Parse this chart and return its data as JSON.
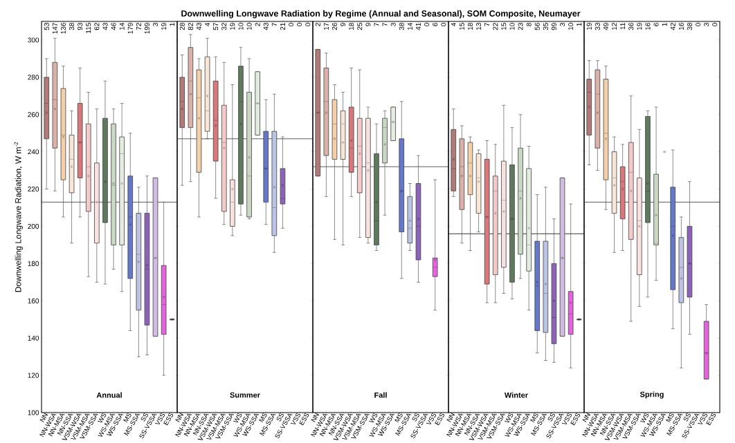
{
  "chart_data": [
    {
      "type": "other",
      "title": "Downwelling Longwave Radiation by Regime (Annual and Seasonal), SOM Composite, Neumayer"
    },
    {
      "type": "box",
      "subtitle": "Annual",
      "ylabel": "Downwelling Longwave Radiation, W m$^{-2}$",
      "categories": [
        "NN",
        "NN-WSA",
        "NN-MSA",
        "NN-SSA",
        "VSM-WSA",
        "VSM-MSA",
        "VSM-SSA",
        "WS",
        "WS-MSA",
        "WS-SSA",
        "MS",
        "MS-SSA",
        "SS",
        "SS-VSSA",
        "VSS",
        "ESS"
      ],
      "colors": [
        "#b07a78",
        "#d9b1a9",
        "#f3cfaa",
        "#f8e6d6",
        "#d9777a",
        "#f4c9c9",
        "#f8e1de",
        "#5f7a5d",
        "#c8d8c4",
        "#e3ecdf",
        "#6577c8",
        "#bcc4e6",
        "#8c63b9",
        "#d1bde2",
        "#e563dc",
        "#444444"
      ],
      "ylim": [
        100,
        310
      ],
      "yticks": [
        100,
        120,
        140,
        160,
        180,
        200,
        220,
        240,
        260,
        280,
        300
      ],
      "ref_lines": [
        {
          "axis": "y",
          "value": 213,
          "color": "#333333"
        }
      ],
      "boxes": [
        {
          "low": 220,
          "q1": 247,
          "median": 266,
          "q3": 280,
          "high": 290,
          "mean": 261
        },
        {
          "low": 219,
          "q1": 242,
          "median": 268,
          "q3": 288,
          "high": 301,
          "mean": 263
        },
        {
          "low": 205,
          "q1": 225,
          "median": 249,
          "q3": 274,
          "high": 286,
          "mean": 248
        },
        {
          "low": 191,
          "q1": 218,
          "median": 236,
          "q3": 249,
          "high": 262,
          "mean": 232
        },
        {
          "low": 205,
          "q1": 226,
          "median": 245,
          "q3": 266,
          "high": 285,
          "mean": 245
        },
        {
          "low": 173,
          "q1": 208,
          "median": 232,
          "q3": 255,
          "high": 272,
          "mean": 227
        },
        {
          "low": 170,
          "q1": 191,
          "median": 213,
          "q3": 234,
          "high": 263,
          "mean": 213
        },
        {
          "low": 169,
          "q1": 202,
          "median": 213,
          "q3": 258,
          "high": 278,
          "mean": 224
        },
        {
          "low": 177,
          "q1": 190,
          "median": 222,
          "q3": 255,
          "high": 263,
          "mean": 223
        },
        {
          "low": 165,
          "q1": 190,
          "median": 239,
          "q3": 248,
          "high": 266,
          "mean": 223
        },
        {
          "low": 144,
          "q1": 172,
          "median": 205,
          "q3": 227,
          "high": 250,
          "mean": 201
        },
        {
          "low": 130,
          "q1": 155,
          "median": 185,
          "q3": 207,
          "high": 221,
          "mean": 181
        },
        {
          "low": 131,
          "q1": 147,
          "median": 177,
          "q3": 207,
          "high": 227,
          "mean": 179
        },
        {
          "low": 141,
          "q1": 141,
          "median": 183,
          "q3": 226,
          "high": 226,
          "mean": 183
        },
        {
          "low": 120,
          "q1": 142,
          "median": 158,
          "q3": 179,
          "high": 213,
          "mean": 162
        },
        {
          "low": 150,
          "q1": 150,
          "median": 150,
          "q3": 150,
          "high": 150,
          "mean": 150
        }
      ],
      "annotations": [
        "53",
        "147",
        "136",
        "38",
        "93",
        "115",
        "62",
        "43",
        "46",
        "14",
        "179",
        "72",
        "199",
        "3",
        "19",
        "1"
      ]
    },
    {
      "type": "box",
      "subtitle": "Summer",
      "tick_labels": "x",
      "categories": [
        "NN",
        "NN-WSA",
        "NN-MSA",
        "NN-SSA",
        "VSM-WSA",
        "VSM-MSA",
        "VSM-SSA",
        "WS",
        "WS-MSA",
        "WS-SSA",
        "MS",
        "MS-SSA",
        "SS",
        "SS-VSSA",
        "VSS",
        "ESS"
      ],
      "colors": [
        "#b07a78",
        "#d9b1a9",
        "#f3cfaa",
        "#f8e6d6",
        "#d9777a",
        "#f4c9c9",
        "#f8e1de",
        "#5f7a5d",
        "#c8d8c4",
        "#e3ecdf",
        "#6577c8",
        "#bcc4e6",
        "#8c63b9",
        "#d1bde2",
        "#e563dc",
        "#444444"
      ],
      "ylim": [
        100,
        310
      ],
      "yticks": [
        100,
        120,
        140,
        160,
        180,
        200,
        220,
        240,
        260,
        280,
        300
      ],
      "ref_lines": [
        {
          "axis": "y",
          "value": 247,
          "color": "#333333"
        }
      ],
      "boxes": [
        {
          "low": 222,
          "q1": 253,
          "median": 267,
          "q3": 280,
          "high": 292,
          "mean": 263
        },
        {
          "low": 224,
          "q1": 253,
          "median": 278,
          "q3": 296,
          "high": 303,
          "mean": 271
        },
        {
          "low": 205,
          "q1": 229,
          "median": 269,
          "q3": 284,
          "high": 290,
          "mean": 258
        },
        {
          "low": 247,
          "q1": 251,
          "median": 262,
          "q3": 291,
          "high": 301,
          "mean": 270
        },
        {
          "low": 215,
          "q1": 235,
          "median": 257,
          "q3": 278,
          "high": 291,
          "mean": 254
        },
        {
          "low": 201,
          "q1": 208,
          "median": 245,
          "q3": 265,
          "high": 288,
          "mean": 242
        },
        {
          "low": 195,
          "q1": 200,
          "median": 213,
          "q3": 225,
          "high": 276,
          "mean": 220
        },
        {
          "low": 206,
          "q1": 212,
          "median": 267,
          "q3": 286,
          "high": 296,
          "mean": 255
        },
        {
          "low": 204,
          "q1": 205,
          "median": 227,
          "q3": 272,
          "high": 290,
          "mean": 237
        },
        {
          "low": 249,
          "q1": 249,
          "median": 266,
          "q3": 283,
          "high": 283,
          "mean": 266
        },
        {
          "low": 201,
          "q1": 213,
          "median": 231,
          "q3": 251,
          "high": 268,
          "mean": 231
        },
        {
          "low": 186,
          "q1": 195,
          "median": 210,
          "q3": 251,
          "high": 271,
          "mean": 221
        },
        {
          "low": 199,
          "q1": 212,
          "median": 215,
          "q3": 231,
          "high": 248,
          "mean": 222
        },
        null,
        null,
        null
      ],
      "annotations": [
        "28",
        "82",
        "43",
        "4",
        "57",
        "32",
        "19",
        "10",
        "10",
        "2",
        "43",
        "7",
        "21",
        "0",
        "0",
        "0"
      ]
    },
    {
      "type": "box",
      "subtitle": "Fall",
      "tick_labels": "x",
      "categories": [
        "NN",
        "NN-WSA",
        "NN-MSA",
        "NN-SSA",
        "VSM-WSA",
        "VSM-MSA",
        "VSM-SSA",
        "WS",
        "WS-MSA",
        "WS-SSA",
        "MS",
        "MS-SSA",
        "SS",
        "SS-VSSA",
        "VSS",
        "ESS"
      ],
      "colors": [
        "#b07a78",
        "#d9b1a9",
        "#f3cfaa",
        "#f8e6d6",
        "#d9777a",
        "#f4c9c9",
        "#f8e1de",
        "#5f7a5d",
        "#c8d8c4",
        "#e3ecdf",
        "#6577c8",
        "#bcc4e6",
        "#8c63b9",
        "#d1bde2",
        "#e563dc",
        "#444444"
      ],
      "ylim": [
        100,
        310
      ],
      "yticks": [
        100,
        120,
        140,
        160,
        180,
        200,
        220,
        240,
        260,
        280,
        300
      ],
      "ref_lines": [
        {
          "axis": "y",
          "value": 232,
          "color": "#333333"
        }
      ],
      "boxes": [
        {
          "low": 227,
          "q1": 227,
          "median": 261,
          "q3": 295,
          "high": 295,
          "mean": 261
        },
        {
          "low": 216,
          "q1": 238,
          "median": 267,
          "q3": 285,
          "high": 293,
          "mean": 261
        },
        {
          "low": 193,
          "q1": 236,
          "median": 255,
          "q3": 268,
          "high": 276,
          "mean": 247
        },
        {
          "low": 190,
          "q1": 236,
          "median": 255,
          "q3": 262,
          "high": 272,
          "mean": 245
        },
        {
          "low": 216,
          "q1": 229,
          "median": 242,
          "q3": 264,
          "high": 285,
          "mean": 246
        },
        {
          "low": 194,
          "q1": 218,
          "median": 243,
          "q3": 258,
          "high": 284,
          "mean": 239
        },
        {
          "low": 191,
          "q1": 194,
          "median": 234,
          "q3": 258,
          "high": 264,
          "mean": 230
        },
        {
          "low": 187,
          "q1": 190,
          "median": 203,
          "q3": 239,
          "high": 255,
          "mean": 213
        },
        {
          "low": 206,
          "q1": 234,
          "median": 253,
          "q3": 258,
          "high": 262,
          "mean": 244
        },
        {
          "low": 246,
          "q1": 246,
          "median": 256,
          "q3": 264,
          "high": 264,
          "mean": 256
        },
        {
          "low": 172,
          "q1": 197,
          "median": 219,
          "q3": 247,
          "high": 267,
          "mean": 219
        },
        {
          "low": 187,
          "q1": 191,
          "median": 199,
          "q3": 216,
          "high": 223,
          "mean": 203
        },
        {
          "low": 170,
          "q1": 182,
          "median": 200,
          "q3": 223,
          "high": 238,
          "mean": 204
        },
        null,
        {
          "low": 155,
          "q1": 173,
          "median": 178,
          "q3": 183,
          "high": 225,
          "mean": 182
        },
        null
      ],
      "annotations": [
        "2",
        "17",
        "26",
        "9",
        "18",
        "25",
        "9",
        "7",
        "7",
        "3",
        "38",
        "14",
        "41",
        "0",
        "6",
        "0"
      ]
    },
    {
      "type": "box",
      "subtitle": "Winter",
      "tick_labels": "x",
      "categories": [
        "NN",
        "NN-WSA",
        "NN-MSA",
        "NN-SSA",
        "VSM-WSA",
        "VSM-MSA",
        "VSM-SSA",
        "WS",
        "WS-MSA",
        "WS-SSA",
        "MS",
        "MS-SSA",
        "SS",
        "SS-VSSA",
        "VSS",
        "ESS"
      ],
      "colors": [
        "#b07a78",
        "#d9b1a9",
        "#f3cfaa",
        "#f8e6d6",
        "#d9777a",
        "#f4c9c9",
        "#f8e1de",
        "#5f7a5d",
        "#c8d8c4",
        "#e3ecdf",
        "#6577c8",
        "#bcc4e6",
        "#8c63b9",
        "#d1bde2",
        "#e563dc",
        "#444444"
      ],
      "ylim": [
        100,
        310
      ],
      "yticks": [
        100,
        120,
        140,
        160,
        180,
        200,
        220,
        240,
        260,
        280,
        300
      ],
      "ref_lines": [
        {
          "axis": "y",
          "value": 196,
          "color": "#000000"
        }
      ],
      "boxes": [
        {
          "low": 216,
          "q1": 219,
          "median": 231,
          "q3": 252,
          "high": 263,
          "mean": 236
        },
        {
          "low": 191,
          "q1": 209,
          "median": 232,
          "q3": 247,
          "high": 254,
          "mean": 227
        },
        {
          "low": 187,
          "q1": 217,
          "median": 234,
          "q3": 245,
          "high": 248,
          "mean": 227
        },
        {
          "low": 197,
          "q1": 207,
          "median": 226,
          "q3": 239,
          "high": 241,
          "mean": 224
        },
        {
          "low": 159,
          "q1": 169,
          "median": 205,
          "q3": 236,
          "high": 246,
          "mean": 205
        },
        {
          "low": 159,
          "q1": 174,
          "median": 219,
          "q3": 227,
          "high": 244,
          "mean": 207
        },
        {
          "low": 164,
          "q1": 178,
          "median": 214,
          "q3": 235,
          "high": 265,
          "mean": 208
        },
        {
          "low": 161,
          "q1": 170,
          "median": 204,
          "q3": 233,
          "high": 253,
          "mean": 204
        },
        {
          "low": 172,
          "q1": 185,
          "median": 219,
          "q3": 242,
          "high": 260,
          "mean": 215
        },
        {
          "low": 155,
          "q1": 176,
          "median": 190,
          "q3": 231,
          "high": 243,
          "mean": 199
        },
        {
          "low": 132,
          "q1": 144,
          "median": 168,
          "q3": 192,
          "high": 217,
          "mean": 170
        },
        {
          "low": 128,
          "q1": 143,
          "median": 164,
          "q3": 192,
          "high": 221,
          "mean": 169
        },
        {
          "low": 127,
          "q1": 137,
          "median": 151,
          "q3": 180,
          "high": 204,
          "mean": 160
        },
        {
          "low": 141,
          "q1": 141,
          "median": 183,
          "q3": 226,
          "high": 226,
          "mean": 183
        },
        {
          "low": 124,
          "q1": 142,
          "median": 153,
          "q3": 165,
          "high": 212,
          "mean": 159
        },
        {
          "low": 150,
          "q1": 150,
          "median": 150,
          "q3": 150,
          "high": 150,
          "mean": 150
        }
      ],
      "annotations": [
        "4",
        "15",
        "18",
        "13",
        "7",
        "22",
        "15",
        "10",
        "23",
        "8",
        "56",
        "35",
        "99",
        "3",
        "10",
        "1"
      ]
    },
    {
      "type": "box",
      "subtitle": "Spring",
      "tick_labels": "x",
      "categories": [
        "NN",
        "NN-WSA",
        "NN-MSA",
        "NN-SSA",
        "VSM-WSA",
        "VSM-MSA",
        "VSM-SSA",
        "WS",
        "WS-MSA",
        "WS-SSA",
        "MS",
        "MS-SSA",
        "SS",
        "SS-VSSA",
        "VSS",
        "ESS"
      ],
      "colors": [
        "#b07a78",
        "#d9b1a9",
        "#f3cfaa",
        "#f8e6d6",
        "#d9777a",
        "#f4c9c9",
        "#f8e1de",
        "#5f7a5d",
        "#c8d8c4",
        "#e3ecdf",
        "#6577c8",
        "#bcc4e6",
        "#8c63b9",
        "#d1bde2",
        "#e563dc",
        "#444444"
      ],
      "ylim": [
        100,
        310
      ],
      "yticks": [
        100,
        120,
        140,
        160,
        180,
        200,
        220,
        240,
        260,
        280,
        300
      ],
      "ref_lines": [
        {
          "axis": "y",
          "value": 213,
          "color": "#333333"
        }
      ],
      "boxes": [
        {
          "low": 233,
          "q1": 249,
          "median": 272,
          "q3": 279,
          "high": 289,
          "mean": 264
        },
        {
          "low": 230,
          "q1": 242,
          "median": 271,
          "q3": 284,
          "high": 289,
          "mean": 261
        },
        {
          "low": 209,
          "q1": 225,
          "median": 250,
          "q3": 279,
          "high": 286,
          "mean": 247
        },
        {
          "low": 186,
          "q1": 207,
          "median": 226,
          "q3": 240,
          "high": 248,
          "mean": 222
        },
        {
          "low": 187,
          "q1": 204,
          "median": 224,
          "q3": 232,
          "high": 244,
          "mean": 220
        },
        {
          "low": 149,
          "q1": 193,
          "median": 229,
          "q3": 245,
          "high": 270,
          "mean": 219
        },
        {
          "low": 157,
          "q1": 174,
          "median": 203,
          "q3": 226,
          "high": 252,
          "mean": 200
        },
        {
          "low": 162,
          "q1": 202,
          "median": 219,
          "q3": 259,
          "high": 262,
          "mean": 223
        },
        {
          "low": 171,
          "q1": 190,
          "median": 191,
          "q3": 228,
          "high": 264,
          "mean": 206
        },
        {
          "low": 240,
          "q1": 240,
          "median": 240,
          "q3": 240,
          "high": 240,
          "mean": 240
        },
        {
          "low": 145,
          "q1": 166,
          "median": 200,
          "q3": 221,
          "high": 241,
          "mean": 195
        },
        {
          "low": 124,
          "q1": 159,
          "median": 178,
          "q3": 194,
          "high": 205,
          "mean": 172
        },
        {
          "low": 142,
          "q1": 162,
          "median": 180,
          "q3": 200,
          "high": 224,
          "mean": 180
        },
        null,
        {
          "low": 118,
          "q1": 118,
          "median": 132,
          "q3": 149,
          "high": 158,
          "mean": 132
        },
        null
      ],
      "annotations": [
        "19",
        "33",
        "49",
        "12",
        "11",
        "36",
        "19",
        "16",
        "6",
        "1",
        "42",
        "16",
        "38",
        "0",
        "3",
        "0"
      ]
    }
  ]
}
